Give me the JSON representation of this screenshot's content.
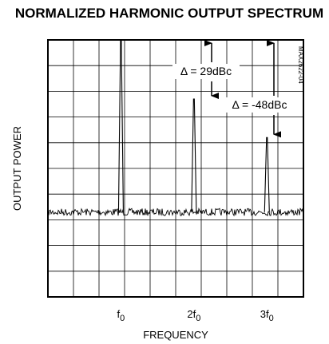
{
  "chart_data": {
    "type": "line",
    "title": "NORMALIZED HARMONIC OUTPUT SPECTRUM",
    "xlabel": "FREQUENCY",
    "ylabel": "OUTPUT POWER",
    "x_ticks": [
      {
        "base": "f",
        "sub": "0",
        "pos": 1
      },
      {
        "base": "2f",
        "sub": "0",
        "pos": 2
      },
      {
        "base": "3f",
        "sub": "0",
        "pos": 3
      }
    ],
    "xlim": [
      0,
      3.5
    ],
    "ylim": [
      0,
      10
    ],
    "grid": true,
    "y_unit": "grid divisions (relative dB)",
    "series": [
      {
        "peaks": [
          {
            "x": 1,
            "y": 10
          },
          {
            "x": 2,
            "y": 7.7
          },
          {
            "x": 3,
            "y": 6.2
          }
        ],
        "noise_floor": 3.3
      }
    ],
    "annotations": [
      {
        "text": "Δ = 29dBc",
        "from_y": 10,
        "to_y": 7.7
      },
      {
        "text": "Δ = -48dBc",
        "from_y": 10,
        "to_y": 6.2
      }
    ],
    "part_tag": "MAX2622-04"
  }
}
